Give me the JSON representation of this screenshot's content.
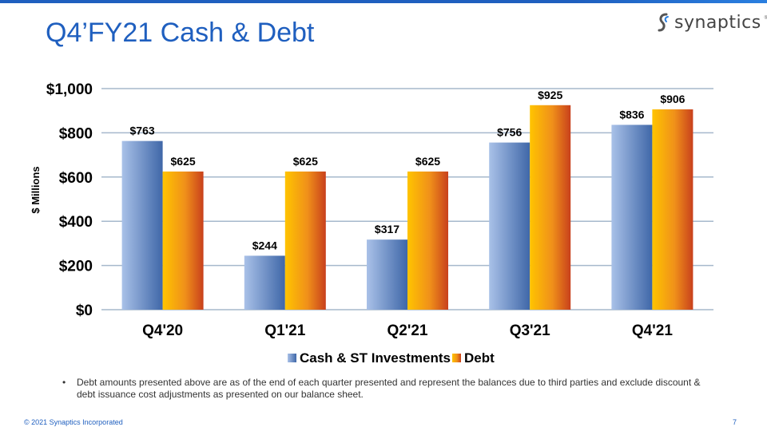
{
  "slide": {
    "title": "Q4’FY21 Cash & Debt",
    "logo_text": "synaptics",
    "logo_mark": "®",
    "footnote_bullet": "•",
    "footnote": "Debt amounts presented above are as of the end of each quarter presented and represent the balances due to third parties and exclude discount & debt issuance cost adjustments as presented on our balance sheet.",
    "copyright": "© 2021 Synaptics Incorporated",
    "page_number": "7"
  },
  "colors": {
    "brand_blue": "#1f5fbf",
    "cash_light": "#9bb5e0",
    "cash_dark": "#3f67a8",
    "debt_light": "#ffc400",
    "debt_dark": "#c8401c"
  },
  "chart_data": {
    "type": "bar",
    "categories": [
      "Q4'20",
      "Q1'21",
      "Q2'21",
      "Q3'21",
      "Q4'21"
    ],
    "series": [
      {
        "name": "Cash & ST Investments",
        "values": [
          763,
          244,
          317,
          756,
          836
        ],
        "labels": [
          "$763",
          "$244",
          "$317",
          "$756",
          "$836"
        ]
      },
      {
        "name": "Debt",
        "values": [
          625,
          625,
          625,
          925,
          906
        ],
        "labels": [
          "$625",
          "$625",
          "$625",
          "$925",
          "$906"
        ]
      }
    ],
    "ylabel": "$ Millions",
    "ylim": [
      0,
      1000
    ],
    "yticks": [
      0,
      200,
      400,
      600,
      800,
      1000
    ],
    "ytick_labels": [
      "$0",
      "$200",
      "$400",
      "$600",
      "$800",
      "$1,000"
    ],
    "grid": true,
    "legend": "bottom"
  }
}
